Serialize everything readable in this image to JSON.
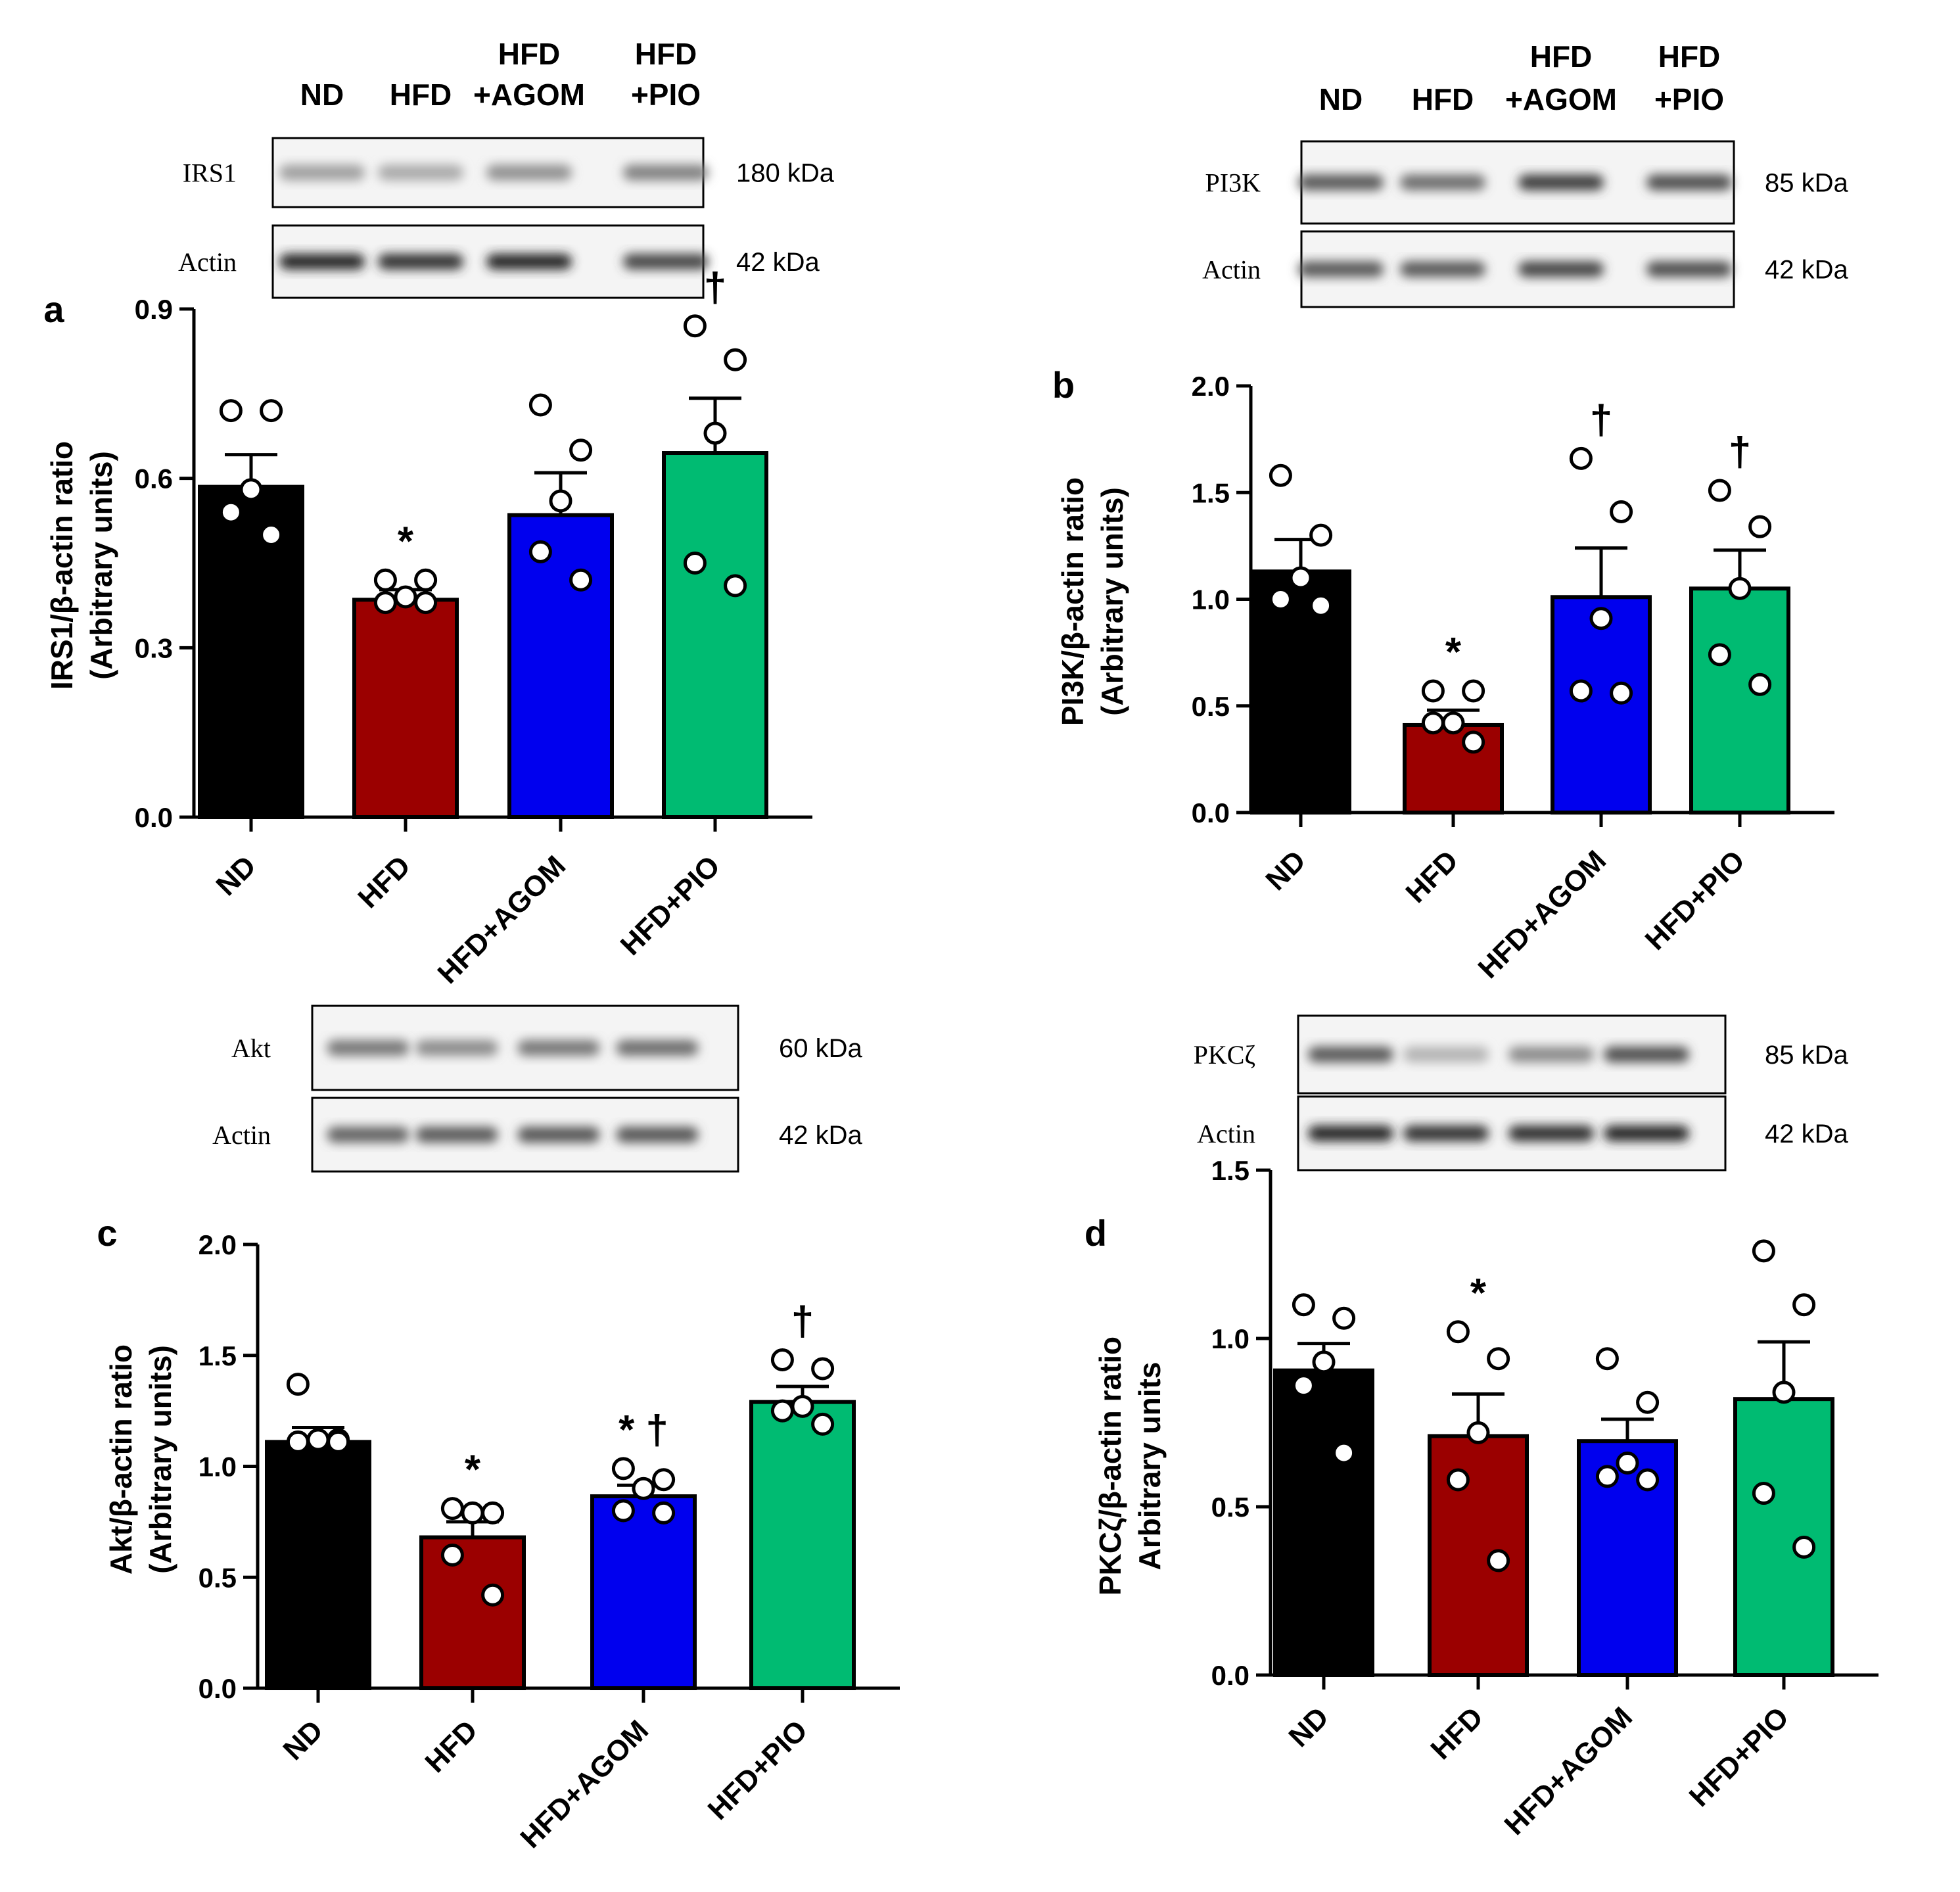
{
  "colors": [
    "#000000",
    "#9b0000",
    "#0000ee",
    "#00bb72"
  ],
  "chart_data": [
    {
      "type": "bar",
      "panel": "a",
      "title": "",
      "ylabel": "IRS1/β-actin ratio",
      "ylabel2": "(Arbitrary units)",
      "xlabel": "",
      "categories": [
        "ND",
        "HFD",
        "HFD+AGOM",
        "HFD+PIO"
      ],
      "values": [
        0.585,
        0.385,
        0.535,
        0.645
      ],
      "errors": [
        0.057,
        0.018,
        0.075,
        0.097
      ],
      "points": [
        [
          0.72,
          0.72,
          0.58,
          0.54,
          0.5
        ],
        [
          0.42,
          0.42,
          0.39,
          0.38,
          0.38
        ],
        [
          0.73,
          0.65,
          0.56,
          0.47,
          0.42
        ],
        [
          0.87,
          0.81,
          0.68,
          0.45,
          0.41
        ]
      ],
      "markers": [
        "",
        "*",
        "",
        "†"
      ],
      "yticks": [
        "0.0",
        "0.3",
        "0.6",
        "0.9"
      ],
      "ylim": [
        0,
        0.9
      ],
      "blot": {
        "lane_labels": [
          [
            "ND"
          ],
          [
            "HFD"
          ],
          [
            "HFD",
            "+AGOM"
          ],
          [
            "HFD",
            "+PIO"
          ]
        ],
        "rows": [
          {
            "protein": "IRS1",
            "kda": "180 kDa"
          },
          {
            "protein": "Actin",
            "kda": "42 kDa"
          }
        ]
      }
    },
    {
      "type": "bar",
      "panel": "b",
      "title": "",
      "ylabel": "PI3K/β-actin ratio",
      "ylabel2": "(Arbitrary units)",
      "xlabel": "",
      "categories": [
        "ND",
        "HFD",
        "HFD+AGOM",
        "HFD+PIO"
      ],
      "values": [
        1.13,
        0.41,
        1.01,
        1.05
      ],
      "errors": [
        0.15,
        0.07,
        0.23,
        0.18
      ],
      "points": [
        [
          1.58,
          1.3,
          1.1,
          1.0,
          0.97
        ],
        [
          0.57,
          0.57,
          0.42,
          0.42,
          0.33
        ],
        [
          1.66,
          1.41,
          0.91,
          0.57,
          0.56
        ],
        [
          1.51,
          1.34,
          1.05,
          0.74,
          0.6
        ]
      ],
      "markers": [
        "",
        "*",
        "†",
        "†"
      ],
      "yticks": [
        "0.0",
        "0.5",
        "1.0",
        "1.5",
        "2.0"
      ],
      "ylim": [
        0,
        2.0
      ],
      "blot": {
        "lane_labels": [
          [
            "ND"
          ],
          [
            "HFD"
          ],
          [
            "HFD",
            "+AGOM"
          ],
          [
            "HFD",
            "+PIO"
          ]
        ],
        "rows": [
          {
            "protein": "PI3K",
            "kda": "85 kDa"
          },
          {
            "protein": "Actin",
            "kda": "42 kDa"
          }
        ]
      }
    },
    {
      "type": "bar",
      "panel": "c",
      "title": "",
      "ylabel": "Akt/β-actin ratio",
      "ylabel2": "(Arbitrary units)",
      "xlabel": "",
      "categories": [
        "ND",
        "HFD",
        "HFD+AGOM",
        "HFD+PIO"
      ],
      "values": [
        1.11,
        0.68,
        0.865,
        1.29
      ],
      "errors": [
        0.065,
        0.07,
        0.05,
        0.07
      ],
      "points": [
        [
          1.37,
          1.12,
          1.12,
          1.11,
          1.11
        ],
        [
          0.81,
          0.79,
          0.79,
          0.6,
          0.42
        ],
        [
          0.99,
          0.94,
          0.9,
          0.8,
          0.79
        ],
        [
          1.48,
          1.44,
          1.27,
          1.25,
          1.19
        ]
      ],
      "markers": [
        "",
        "*",
        "* †",
        "†"
      ],
      "yticks": [
        "0.0",
        "0.5",
        "1.0",
        "1.5",
        "2.0"
      ],
      "ylim": [
        0,
        2.0
      ],
      "blot": {
        "lane_labels": [],
        "rows": [
          {
            "protein": "Akt",
            "kda": "60 kDa"
          },
          {
            "protein": "Actin",
            "kda": "42 kDa"
          }
        ]
      }
    },
    {
      "type": "bar",
      "panel": "d",
      "title": "",
      "ylabel": "PKCζ/β-actin ratio",
      "ylabel2": "Arbitrary units",
      "xlabel": "",
      "categories": [
        "ND",
        "HFD",
        "HFD+AGOM",
        "HFD+PIO"
      ],
      "values": [
        0.905,
        0.71,
        0.695,
        0.82
      ],
      "errors": [
        0.08,
        0.125,
        0.065,
        0.17
      ],
      "points": [
        [
          1.1,
          1.06,
          0.93,
          0.86,
          0.66
        ],
        [
          1.02,
          0.94,
          0.72,
          0.58,
          0.34
        ],
        [
          0.94,
          0.81,
          0.63,
          0.59,
          0.58
        ],
        [
          1.26,
          1.1,
          0.84,
          0.54,
          0.38
        ]
      ],
      "markers": [
        "",
        "*",
        "",
        ""
      ],
      "yticks": [
        "0.0",
        "0.5",
        "1.0",
        "1.5"
      ],
      "ylim": [
        0,
        1.5
      ],
      "blot": {
        "lane_labels": [],
        "rows": [
          {
            "protein": "PKCζ",
            "kda": "85 kDa"
          },
          {
            "protein": "Actin",
            "kda": "42 kDa"
          }
        ]
      }
    }
  ]
}
